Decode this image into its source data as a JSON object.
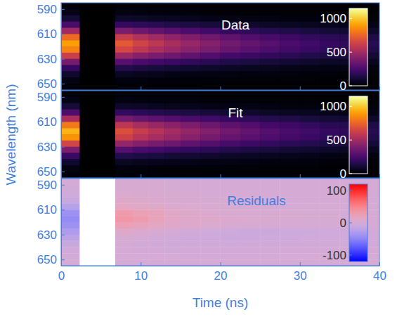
{
  "chart_data": [
    {
      "type": "heatmap",
      "title": "Data",
      "color": "inferno",
      "tick_labels": "y",
      "xlim": [
        0,
        40
      ],
      "xticks": [
        0,
        10,
        20,
        30,
        40
      ],
      "ylim": [
        585,
        655
      ],
      "yticks": [
        590,
        610,
        630,
        650
      ],
      "x_edges": [
        0,
        2.3,
        6.8,
        9,
        11,
        13,
        15,
        17.5,
        20,
        22.5,
        25,
        27.5,
        30,
        32.5,
        35,
        37.5,
        40
      ],
      "y_edges": [
        585,
        590,
        595,
        600,
        605,
        610,
        615,
        620,
        625,
        630,
        635,
        640,
        645,
        650,
        655
      ],
      "cells": [
        [
          19,
          null,
          16,
          14,
          12,
          10,
          9,
          8,
          7,
          6,
          6,
          5,
          5,
          4,
          4,
          3
        ],
        [
          45,
          null,
          37,
          33,
          30,
          27,
          23,
          21,
          18,
          16,
          14,
          13,
          11,
          10,
          9,
          8
        ],
        [
          109,
          null,
          87,
          77,
          70,
          63,
          56,
          49,
          43,
          38,
          34,
          31,
          27,
          24,
          22,
          19
        ],
        [
          256,
          null,
          200,
          179,
          163,
          147,
          132,
          117,
          102,
          90,
          80,
          71,
          63,
          56,
          50,
          45
        ],
        [
          498,
          null,
          389,
          348,
          318,
          288,
          258,
          229,
          200,
          177,
          157,
          140,
          124,
          110,
          99,
          88
        ],
        [
          768,
          null,
          608,
          544,
          496,
          446,
          400,
          355,
          310,
          275,
          244,
          219,
          192,
          171,
          153,
          136
        ],
        [
          905,
          null,
          715,
          640,
          582,
          524,
          470,
          418,
          366,
          325,
          289,
          258,
          227,
          202,
          181,
          161
        ],
        [
          834,
          null,
          651,
          581,
          530,
          479,
          430,
          382,
          334,
          296,
          263,
          235,
          207,
          184,
          166,
          147
        ],
        [
          616,
          null,
          472,
          421,
          384,
          347,
          310,
          274,
          238,
          210,
          186,
          166,
          147,
          131,
          117,
          105
        ],
        [
          379,
          null,
          288,
          256,
          233,
          210,
          187,
          165,
          143,
          126,
          113,
          101,
          90,
          79,
          72,
          63
        ],
        [
          199,
          null,
          150,
          132,
          120,
          108,
          97,
          86,
          75,
          67,
          60,
          53,
          48,
          42,
          38,
          33
        ],
        [
          90,
          null,
          68,
          60,
          55,
          49,
          44,
          39,
          34,
          30,
          28,
          25,
          22,
          19,
          17,
          15
        ],
        [
          36,
          null,
          27,
          24,
          22,
          20,
          17,
          15,
          13,
          12,
          10,
          10,
          9,
          8,
          7,
          6
        ],
        [
          19,
          null,
          14,
          12,
          11,
          10,
          9,
          8,
          7,
          6,
          6,
          5,
          5,
          4,
          4,
          3
        ]
      ],
      "colorbar": {
        "range": [
          0,
          1150
        ],
        "ticks": [
          0,
          500,
          1000
        ]
      }
    },
    {
      "type": "heatmap",
      "title": "Fit",
      "color": "inferno",
      "tick_labels": "y",
      "ylabel": "Wavelength (nm)",
      "xlim": [
        0,
        40
      ],
      "xticks": [
        0,
        10,
        20,
        30,
        40
      ],
      "ylim": [
        585,
        655
      ],
      "yticks": [
        590,
        610,
        630,
        650
      ],
      "x_edges": [
        0,
        2.3,
        6.8,
        9,
        11,
        13,
        15,
        17.5,
        20,
        22.5,
        25,
        27.5,
        30,
        32.5,
        35,
        37.5,
        40
      ],
      "y_edges": [
        585,
        590,
        595,
        600,
        605,
        610,
        615,
        620,
        625,
        630,
        635,
        640,
        645,
        650,
        655
      ],
      "cells": [
        [
          19,
          null,
          14,
          12,
          11,
          10,
          9,
          8,
          7,
          6,
          6,
          5,
          5,
          4,
          4,
          3
        ],
        [
          48,
          null,
          34,
          31,
          28,
          26,
          23,
          21,
          18,
          16,
          14,
          13,
          11,
          10,
          9,
          8
        ],
        [
          114,
          null,
          82,
          73,
          67,
          61,
          55,
          49,
          43,
          38,
          34,
          31,
          27,
          24,
          22,
          19
        ],
        [
          266,
          null,
          190,
          171,
          157,
          143,
          129,
          115,
          101,
          90,
          80,
          71,
          63,
          56,
          50,
          45
        ],
        [
          523,
          null,
          374,
          336,
          308,
          281,
          253,
          226,
          198,
          176,
          157,
          140,
          124,
          110,
          99,
          88
        ],
        [
          808,
          null,
          578,
          519,
          476,
          434,
          391,
          349,
          306,
          272,
          242,
          217,
          191,
          170,
          153,
          136
        ],
        [
          950,
          null,
          680,
          610,
          560,
          510,
          460,
          410,
          360,
          320,
          285,
          255,
          225,
          200,
          180,
          160
        ],
        [
          874,
          null,
          626,
          561,
          515,
          469,
          423,
          377,
          331,
          294,
          262,
          235,
          207,
          184,
          166,
          147
        ],
        [
          646,
          null,
          462,
          415,
          381,
          347,
          313,
          279,
          245,
          218,
          194,
          173,
          153,
          136,
          122,
          109
        ],
        [
          399,
          null,
          286,
          256,
          235,
          214,
          193,
          172,
          151,
          134,
          120,
          107,
          95,
          84,
          76,
          67
        ],
        [
          209,
          null,
          150,
          134,
          123,
          112,
          101,
          90,
          79,
          70,
          63,
          56,
          50,
          44,
          40,
          35
        ],
        [
          95,
          null,
          68,
          61,
          56,
          51,
          46,
          41,
          36,
          32,
          29,
          26,
          23,
          20,
          18,
          16
        ],
        [
          38,
          null,
          27,
          24,
          22,
          20,
          18,
          16,
          14,
          13,
          11,
          10,
          9,
          8,
          7,
          6
        ],
        [
          19,
          null,
          14,
          12,
          11,
          10,
          9,
          8,
          7,
          6,
          6,
          5,
          5,
          4,
          4,
          3
        ]
      ],
      "colorbar": {
        "range": [
          0,
          1150
        ],
        "ticks": [
          0,
          500,
          1000
        ]
      }
    },
    {
      "type": "heatmap",
      "title": "Residuals",
      "color": "bwr",
      "xlabel": "Time (ns)",
      "xlim": [
        0,
        40
      ],
      "xticks": [
        0,
        10,
        20,
        30,
        40
      ],
      "ylim": [
        585,
        655
      ],
      "yticks": [
        590,
        610,
        630,
        650
      ],
      "x_edges": [
        0,
        2.3,
        6.8,
        9,
        11,
        13,
        15,
        17.5,
        20,
        22.5,
        25,
        27.5,
        30,
        32.5,
        35,
        37.5,
        40
      ],
      "y_edges": [
        585,
        590,
        595,
        600,
        605,
        610,
        615,
        620,
        625,
        630,
        635,
        640,
        645,
        650,
        655
      ],
      "cells": [
        [
          0,
          null,
          2,
          2,
          1,
          0,
          0,
          0,
          0,
          0,
          0,
          0,
          0,
          0,
          0,
          0
        ],
        [
          -3,
          null,
          3,
          2,
          2,
          1,
          0,
          0,
          0,
          0,
          0,
          0,
          0,
          0,
          0,
          0
        ],
        [
          -5,
          null,
          5,
          4,
          3,
          2,
          1,
          0,
          0,
          0,
          0,
          0,
          0,
          0,
          0,
          0
        ],
        [
          -10,
          null,
          10,
          8,
          6,
          4,
          3,
          2,
          1,
          0,
          0,
          0,
          0,
          0,
          0,
          0
        ],
        [
          -25,
          null,
          15,
          12,
          10,
          7,
          5,
          3,
          2,
          1,
          0,
          0,
          0,
          0,
          0,
          0
        ],
        [
          -40,
          null,
          30,
          25,
          20,
          12,
          9,
          6,
          4,
          3,
          2,
          2,
          1,
          1,
          0,
          0
        ],
        [
          -45,
          null,
          35,
          30,
          22,
          14,
          10,
          8,
          6,
          5,
          4,
          3,
          2,
          2,
          1,
          1
        ],
        [
          -40,
          null,
          25,
          20,
          15,
          10,
          7,
          5,
          3,
          2,
          1,
          0,
          0,
          0,
          0,
          0
        ],
        [
          -30,
          null,
          10,
          6,
          3,
          0,
          -3,
          -5,
          -7,
          -8,
          -8,
          -7,
          -6,
          -5,
          -5,
          -4
        ],
        [
          -20,
          null,
          2,
          0,
          -2,
          -4,
          -6,
          -7,
          -8,
          -8,
          -7,
          -6,
          -5,
          -5,
          -4,
          -4
        ],
        [
          -10,
          null,
          0,
          -2,
          -3,
          -4,
          -4,
          -4,
          -4,
          -3,
          -3,
          -3,
          -2,
          -2,
          -2,
          -2
        ],
        [
          -5,
          null,
          0,
          -1,
          -1,
          -2,
          -2,
          -2,
          -2,
          -2,
          -1,
          -1,
          -1,
          -1,
          -1,
          -1
        ],
        [
          -2,
          null,
          0,
          0,
          0,
          0,
          -1,
          -1,
          -1,
          -1,
          -1,
          0,
          0,
          0,
          0,
          0
        ],
        [
          0,
          null,
          0,
          0,
          0,
          0,
          0,
          0,
          0,
          0,
          0,
          0,
          0,
          0,
          0,
          0
        ]
      ],
      "colorbar": {
        "range": [
          -120,
          120
        ],
        "ticks": [
          -100,
          0,
          100
        ]
      }
    }
  ]
}
